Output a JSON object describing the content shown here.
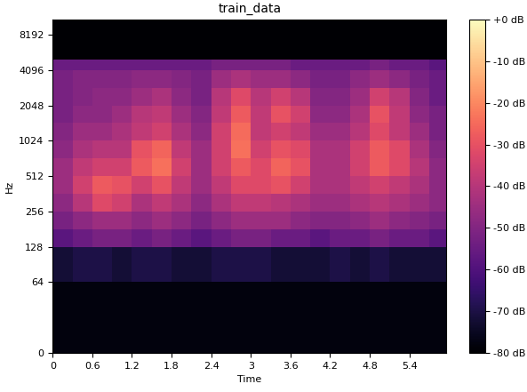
{
  "chart_data": {
    "type": "heatmap",
    "title": "train_data",
    "x_label": "Time",
    "y_label": "Hz",
    "log": "y",
    "xlim": [
      0,
      5.96
    ],
    "xticks": [
      0,
      0.6,
      1.2,
      1.8,
      2.4,
      3,
      3.6,
      4.2,
      4.8,
      5.4
    ],
    "ylim": [
      0,
      11025
    ],
    "yticks": [
      0,
      64,
      128,
      256,
      512,
      1024,
      2048,
      4096,
      8192
    ],
    "x_edges": [
      0,
      0.3,
      0.6,
      0.9,
      1.2,
      1.5,
      1.8,
      2.1,
      2.4,
      2.7,
      3.0,
      3.3,
      3.6,
      3.9,
      4.2,
      4.5,
      4.8,
      5.1,
      5.4,
      5.7,
      5.96
    ],
    "y_edges": [
      0,
      64,
      128,
      181,
      256,
      362,
      512,
      724,
      1024,
      1448,
      2048,
      2896,
      4096,
      5000,
      11025
    ],
    "cells": [
      [
        -78,
        -78,
        -78,
        -78,
        -78,
        -78,
        -78,
        -78,
        -78,
        -78,
        -78,
        -78,
        -78,
        -78,
        -78,
        -78,
        -78,
        -78,
        -78,
        -78
      ],
      [
        -72,
        -70,
        -70,
        -72,
        -70,
        -70,
        -72,
        -72,
        -70,
        -70,
        -70,
        -72,
        -72,
        -72,
        -70,
        -72,
        -70,
        -72,
        -72,
        -72
      ],
      [
        -58,
        -55,
        -52,
        -52,
        -55,
        -52,
        -55,
        -58,
        -55,
        -52,
        -52,
        -55,
        -55,
        -58,
        -55,
        -55,
        -52,
        -55,
        -55,
        -58
      ],
      [
        -52,
        -48,
        -45,
        -45,
        -48,
        -45,
        -48,
        -52,
        -48,
        -45,
        -45,
        -45,
        -48,
        -50,
        -50,
        -48,
        -45,
        -48,
        -50,
        -52
      ],
      [
        -48,
        -40,
        -32,
        -35,
        -42,
        -38,
        -42,
        -48,
        -42,
        -38,
        -38,
        -40,
        -42,
        -45,
        -45,
        -42,
        -40,
        -42,
        -45,
        -48
      ],
      [
        -45,
        -35,
        -28,
        -30,
        -35,
        -30,
        -38,
        -45,
        -38,
        -32,
        -32,
        -30,
        -35,
        -42,
        -42,
        -38,
        -35,
        -38,
        -42,
        -48
      ],
      [
        -45,
        -38,
        -35,
        -35,
        -28,
        -24,
        -35,
        -45,
        -35,
        -28,
        -32,
        -26,
        -30,
        -42,
        -42,
        -35,
        -28,
        -32,
        -40,
        -48
      ],
      [
        -48,
        -42,
        -40,
        -40,
        -30,
        -26,
        -38,
        -45,
        -35,
        -24,
        -35,
        -30,
        -32,
        -42,
        -42,
        -35,
        -28,
        -32,
        -42,
        -50
      ],
      [
        -50,
        -45,
        -45,
        -42,
        -38,
        -35,
        -42,
        -48,
        -35,
        -25,
        -38,
        -35,
        -38,
        -45,
        -45,
        -40,
        -32,
        -38,
        -45,
        -52
      ],
      [
        -52,
        -48,
        -48,
        -45,
        -40,
        -38,
        -45,
        -50,
        -38,
        -28,
        -38,
        -30,
        -35,
        -48,
        -48,
        -42,
        -30,
        -38,
        -48,
        -52
      ],
      [
        -52,
        -50,
        -48,
        -48,
        -45,
        -42,
        -48,
        -52,
        -40,
        -32,
        -40,
        -35,
        -40,
        -50,
        -50,
        -45,
        -35,
        -40,
        -50,
        -55
      ],
      [
        -52,
        -50,
        -50,
        -50,
        -48,
        -48,
        -50,
        -52,
        -45,
        -42,
        -45,
        -45,
        -48,
        -52,
        -52,
        -48,
        -45,
        -48,
        -52,
        -55
      ],
      [
        -55,
        -55,
        -55,
        -55,
        -55,
        -55,
        -55,
        -55,
        -52,
        -52,
        -52,
        -52,
        -55,
        -55,
        -55,
        -55,
        -52,
        -55,
        -55,
        -58
      ],
      [
        -80,
        -80,
        -80,
        -80,
        -80,
        -80,
        -80,
        -80,
        -80,
        -80,
        -80,
        -80,
        -80,
        -80,
        -80,
        -80,
        -80,
        -80,
        -80,
        -80
      ]
    ],
    "colorbar": {
      "range": [
        -80,
        0
      ],
      "ticks": [
        {
          "value": 0,
          "label": "+0 dB"
        },
        {
          "value": -10,
          "label": "-10 dB"
        },
        {
          "value": -20,
          "label": "-20 dB"
        },
        {
          "value": -30,
          "label": "-30 dB"
        },
        {
          "value": -40,
          "label": "-40 dB"
        },
        {
          "value": -50,
          "label": "-50 dB"
        },
        {
          "value": -60,
          "label": "-60 dB"
        },
        {
          "value": -70,
          "label": "-70 dB"
        },
        {
          "value": -80,
          "label": "-80 dB"
        }
      ]
    }
  }
}
